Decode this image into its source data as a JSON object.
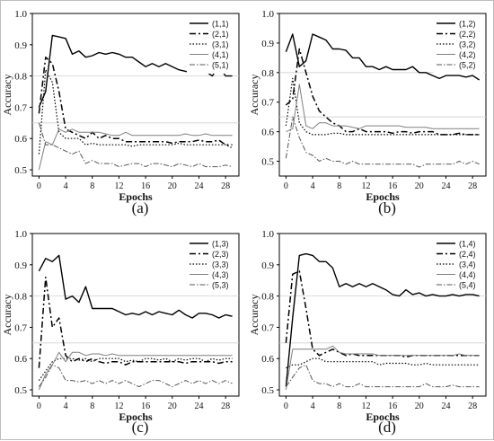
{
  "figure": {
    "ylabel": "Accuracy",
    "xlabel": "Epochs",
    "xticks": [
      "0",
      "4",
      "8",
      "12",
      "16",
      "20",
      "24",
      "28"
    ],
    "yticks": [
      "0.5",
      "0.6",
      "0.7",
      "0.8",
      "0.9",
      "1.0"
    ],
    "series_styles": [
      {
        "color": "#000000",
        "dash": "",
        "width": 1.4
      },
      {
        "color": "#000000",
        "dash": "7,3,2,3",
        "width": 1.5
      },
      {
        "color": "#000000",
        "dash": "1.5,2",
        "width": 1.2
      },
      {
        "color": "#7f7f7f",
        "dash": "",
        "width": 1.0
      },
      {
        "color": "#555555",
        "dash": "6,2,1.5,2",
        "width": 1.0
      }
    ]
  },
  "chart_data": [
    {
      "caption": "(a)",
      "type": "line",
      "xlabel": "Epochs",
      "ylabel": "Accuracy",
      "xlim": [
        -1,
        30
      ],
      "ylim": [
        0.48,
        1.0
      ],
      "grid": false,
      "legend_position": "top-right",
      "x": [
        0,
        1,
        2,
        3,
        4,
        5,
        6,
        7,
        8,
        9,
        10,
        11,
        12,
        13,
        14,
        15,
        16,
        17,
        18,
        19,
        20,
        21,
        22,
        23,
        24,
        25,
        26,
        27,
        28,
        29
      ],
      "series": [
        {
          "name": "(1,1)",
          "values": [
            0.7,
            0.75,
            0.93,
            0.925,
            0.92,
            0.87,
            0.88,
            0.86,
            0.865,
            0.875,
            0.87,
            0.875,
            0.87,
            0.86,
            0.86,
            0.845,
            0.83,
            0.84,
            0.83,
            0.84,
            0.83,
            0.82,
            0.815,
            0.81,
            0.82,
            0.815,
            0.8,
            0.83,
            0.8,
            0.8
          ]
        },
        {
          "name": "(2,1)",
          "values": [
            0.68,
            0.86,
            0.84,
            0.75,
            0.63,
            0.62,
            0.61,
            0.6,
            0.62,
            0.6,
            0.61,
            0.6,
            0.6,
            0.59,
            0.59,
            0.59,
            0.59,
            0.59,
            0.59,
            0.59,
            0.585,
            0.59,
            0.59,
            0.59,
            0.595,
            0.59,
            0.59,
            0.595,
            0.58,
            0.58
          ]
        },
        {
          "name": "(3,1)",
          "values": [
            0.55,
            0.82,
            0.78,
            0.62,
            0.6,
            0.6,
            0.6,
            0.58,
            0.585,
            0.58,
            0.58,
            0.58,
            0.58,
            0.58,
            0.575,
            0.58,
            0.58,
            0.58,
            0.58,
            0.58,
            0.58,
            0.585,
            0.58,
            0.58,
            0.58,
            0.58,
            0.58,
            0.58,
            0.58,
            0.57
          ]
        },
        {
          "name": "(4,1)",
          "values": [
            0.5,
            0.59,
            0.58,
            0.63,
            0.62,
            0.63,
            0.62,
            0.62,
            0.62,
            0.62,
            0.615,
            0.61,
            0.61,
            0.62,
            0.61,
            0.61,
            0.61,
            0.61,
            0.61,
            0.61,
            0.61,
            0.61,
            0.615,
            0.61,
            0.61,
            0.615,
            0.61,
            0.61,
            0.61,
            0.61
          ]
        },
        {
          "name": "(5,1)",
          "values": [
            0.65,
            0.58,
            0.58,
            0.57,
            0.56,
            0.55,
            0.56,
            0.52,
            0.53,
            0.52,
            0.52,
            0.52,
            0.51,
            0.515,
            0.52,
            0.52,
            0.51,
            0.52,
            0.52,
            0.515,
            0.51,
            0.52,
            0.515,
            0.51,
            0.52,
            0.51,
            0.51,
            0.51,
            0.515,
            0.51
          ]
        }
      ]
    },
    {
      "caption": "(b)",
      "type": "line",
      "xlabel": "Epochs",
      "ylabel": "Accuracy",
      "xlim": [
        -1,
        30
      ],
      "ylim": [
        0.45,
        1.0
      ],
      "grid": false,
      "legend_position": "top-right",
      "x": [
        0,
        1,
        2,
        3,
        4,
        5,
        6,
        7,
        8,
        9,
        10,
        11,
        12,
        13,
        14,
        15,
        16,
        17,
        18,
        19,
        20,
        21,
        22,
        23,
        24,
        25,
        26,
        27,
        28,
        29
      ],
      "series": [
        {
          "name": "(1,2)",
          "values": [
            0.87,
            0.93,
            0.82,
            0.84,
            0.93,
            0.92,
            0.91,
            0.88,
            0.88,
            0.875,
            0.85,
            0.85,
            0.82,
            0.82,
            0.81,
            0.82,
            0.81,
            0.81,
            0.81,
            0.82,
            0.8,
            0.8,
            0.79,
            0.78,
            0.79,
            0.79,
            0.79,
            0.785,
            0.79,
            0.775
          ]
        },
        {
          "name": "(2,2)",
          "values": [
            0.69,
            0.71,
            0.88,
            0.8,
            0.72,
            0.67,
            0.65,
            0.63,
            0.62,
            0.6,
            0.6,
            0.61,
            0.6,
            0.6,
            0.6,
            0.6,
            0.595,
            0.6,
            0.6,
            0.595,
            0.6,
            0.6,
            0.6,
            0.59,
            0.59,
            0.59,
            0.595,
            0.59,
            0.59,
            0.59
          ]
        },
        {
          "name": "(3,2)",
          "values": [
            0.62,
            0.78,
            0.63,
            0.6,
            0.59,
            0.59,
            0.59,
            0.595,
            0.595,
            0.59,
            0.59,
            0.59,
            0.59,
            0.59,
            0.59,
            0.59,
            0.59,
            0.59,
            0.59,
            0.59,
            0.59,
            0.59,
            0.59,
            0.59,
            0.59,
            0.59,
            0.59,
            0.59,
            0.59,
            0.59
          ]
        },
        {
          "name": "(4,2)",
          "values": [
            0.6,
            0.61,
            0.76,
            0.62,
            0.61,
            0.63,
            0.63,
            0.62,
            0.62,
            0.62,
            0.615,
            0.61,
            0.62,
            0.62,
            0.62,
            0.62,
            0.62,
            0.62,
            0.615,
            0.615,
            0.615,
            0.615,
            0.61,
            0.61,
            0.61,
            0.61,
            0.61,
            0.61,
            0.61,
            0.61
          ]
        },
        {
          "name": "(5,2)",
          "values": [
            0.51,
            0.65,
            0.58,
            0.53,
            0.52,
            0.5,
            0.51,
            0.5,
            0.5,
            0.49,
            0.5,
            0.49,
            0.49,
            0.49,
            0.49,
            0.49,
            0.49,
            0.49,
            0.49,
            0.49,
            0.48,
            0.49,
            0.49,
            0.49,
            0.49,
            0.49,
            0.5,
            0.49,
            0.5,
            0.49
          ]
        }
      ]
    },
    {
      "caption": "(c)",
      "type": "line",
      "xlabel": "Epochs",
      "ylabel": "Accuracy",
      "xlim": [
        -1,
        30
      ],
      "ylim": [
        0.48,
        1.0
      ],
      "grid": false,
      "legend_position": "top-right",
      "x": [
        0,
        1,
        2,
        3,
        4,
        5,
        6,
        7,
        8,
        9,
        10,
        11,
        12,
        13,
        14,
        15,
        16,
        17,
        18,
        19,
        20,
        21,
        22,
        23,
        24,
        25,
        26,
        27,
        28,
        29
      ],
      "series": [
        {
          "name": "(1,3)",
          "values": [
            0.88,
            0.92,
            0.91,
            0.93,
            0.79,
            0.8,
            0.78,
            0.83,
            0.76,
            0.76,
            0.76,
            0.76,
            0.75,
            0.74,
            0.745,
            0.74,
            0.75,
            0.74,
            0.75,
            0.745,
            0.74,
            0.755,
            0.74,
            0.73,
            0.745,
            0.745,
            0.74,
            0.73,
            0.74,
            0.735
          ]
        },
        {
          "name": "(2,3)",
          "values": [
            0.57,
            0.86,
            0.7,
            0.73,
            0.61,
            0.59,
            0.6,
            0.59,
            0.6,
            0.59,
            0.585,
            0.59,
            0.59,
            0.58,
            0.59,
            0.59,
            0.59,
            0.59,
            0.59,
            0.59,
            0.59,
            0.59,
            0.585,
            0.59,
            0.59,
            0.59,
            0.59,
            0.585,
            0.59,
            0.59
          ]
        },
        {
          "name": "(3,3)",
          "values": [
            0.53,
            0.56,
            0.59,
            0.6,
            0.6,
            0.6,
            0.595,
            0.6,
            0.59,
            0.6,
            0.6,
            0.6,
            0.6,
            0.59,
            0.595,
            0.59,
            0.6,
            0.6,
            0.595,
            0.6,
            0.59,
            0.6,
            0.595,
            0.6,
            0.6,
            0.59,
            0.6,
            0.595,
            0.6,
            0.6
          ]
        },
        {
          "name": "(4,3)",
          "values": [
            0.5,
            0.55,
            0.58,
            0.62,
            0.59,
            0.62,
            0.62,
            0.61,
            0.615,
            0.615,
            0.61,
            0.615,
            0.61,
            0.61,
            0.61,
            0.61,
            0.61,
            0.61,
            0.61,
            0.61,
            0.61,
            0.61,
            0.61,
            0.61,
            0.61,
            0.61,
            0.61,
            0.61,
            0.61,
            0.61
          ]
        },
        {
          "name": "(5,3)",
          "values": [
            0.51,
            0.54,
            0.58,
            0.57,
            0.53,
            0.53,
            0.525,
            0.53,
            0.52,
            0.53,
            0.52,
            0.53,
            0.52,
            0.53,
            0.52,
            0.51,
            0.52,
            0.53,
            0.53,
            0.52,
            0.51,
            0.52,
            0.53,
            0.52,
            0.53,
            0.52,
            0.53,
            0.52,
            0.53,
            0.52
          ]
        }
      ]
    },
    {
      "caption": "(d)",
      "type": "line",
      "xlabel": "Epochs",
      "ylabel": "Accuracy",
      "xlim": [
        -1,
        30
      ],
      "ylim": [
        0.48,
        1.0
      ],
      "grid": false,
      "legend_position": "top-right",
      "x": [
        0,
        1,
        2,
        3,
        4,
        5,
        6,
        7,
        8,
        9,
        10,
        11,
        12,
        13,
        14,
        15,
        16,
        17,
        18,
        19,
        20,
        21,
        22,
        23,
        24,
        25,
        26,
        27,
        28,
        29
      ],
      "series": [
        {
          "name": "(1,4)",
          "values": [
            0.51,
            0.73,
            0.93,
            0.935,
            0.93,
            0.91,
            0.91,
            0.89,
            0.83,
            0.84,
            0.83,
            0.84,
            0.83,
            0.84,
            0.83,
            0.82,
            0.805,
            0.8,
            0.82,
            0.805,
            0.81,
            0.8,
            0.805,
            0.8,
            0.8,
            0.805,
            0.8,
            0.805,
            0.805,
            0.8
          ]
        },
        {
          "name": "(2,4)",
          "values": [
            0.65,
            0.87,
            0.88,
            0.76,
            0.63,
            0.61,
            0.62,
            0.63,
            0.62,
            0.61,
            0.615,
            0.61,
            0.61,
            0.61,
            0.61,
            0.61,
            0.61,
            0.61,
            0.605,
            0.61,
            0.61,
            0.61,
            0.61,
            0.61,
            0.61,
            0.61,
            0.61,
            0.61,
            0.61,
            0.61
          ]
        },
        {
          "name": "(3,4)",
          "values": [
            0.57,
            0.58,
            0.58,
            0.59,
            0.6,
            0.6,
            0.59,
            0.59,
            0.59,
            0.59,
            0.59,
            0.59,
            0.59,
            0.59,
            0.58,
            0.585,
            0.585,
            0.585,
            0.585,
            0.58,
            0.58,
            0.585,
            0.58,
            0.58,
            0.58,
            0.58,
            0.58,
            0.58,
            0.58,
            0.58
          ]
        },
        {
          "name": "(4,4)",
          "values": [
            0.5,
            0.63,
            0.63,
            0.63,
            0.63,
            0.63,
            0.63,
            0.64,
            0.62,
            0.615,
            0.615,
            0.615,
            0.615,
            0.615,
            0.61,
            0.61,
            0.61,
            0.61,
            0.61,
            0.61,
            0.61,
            0.61,
            0.61,
            0.61,
            0.61,
            0.61,
            0.615,
            0.61,
            0.61,
            0.61
          ]
        },
        {
          "name": "(5,4)",
          "values": [
            0.51,
            0.54,
            0.57,
            0.58,
            0.53,
            0.52,
            0.52,
            0.51,
            0.52,
            0.51,
            0.51,
            0.52,
            0.51,
            0.51,
            0.51,
            0.51,
            0.51,
            0.51,
            0.51,
            0.51,
            0.51,
            0.52,
            0.51,
            0.51,
            0.51,
            0.515,
            0.51,
            0.51,
            0.51,
            0.51
          ]
        }
      ]
    }
  ]
}
